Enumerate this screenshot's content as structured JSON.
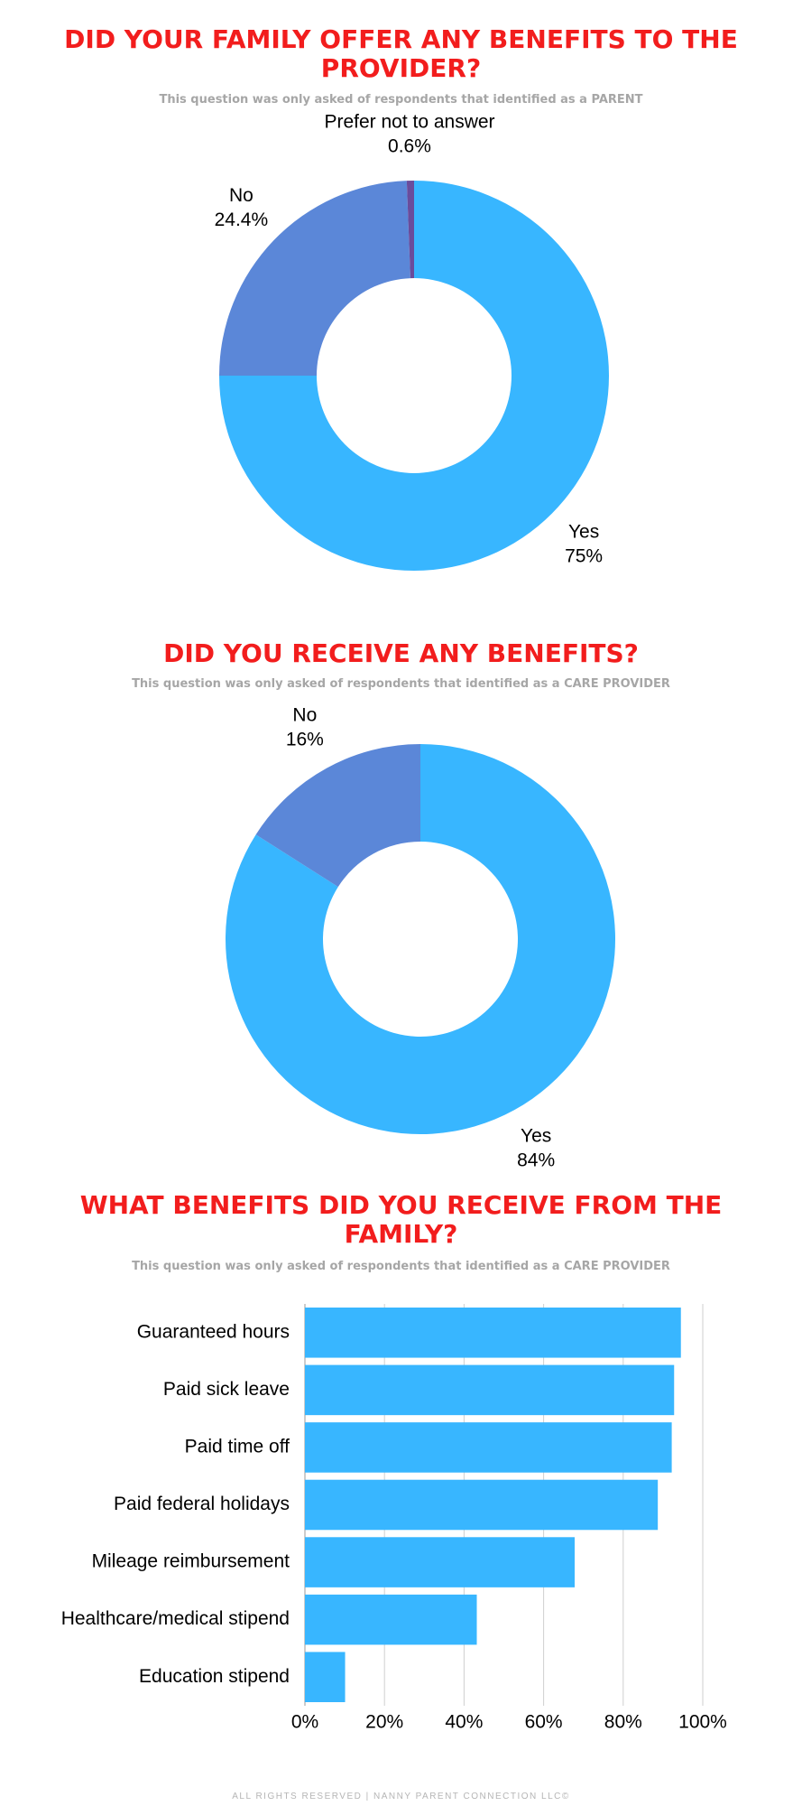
{
  "chart_data": [
    {
      "type": "donut",
      "title": "DID YOUR FAMILY OFFER ANY BENEFITS TO THE PROVIDER?",
      "subtitle": "This question was only asked of respondents that identified as a PARENT",
      "categories": [
        "Yes",
        "No",
        "Prefer not to answer"
      ],
      "values": [
        75,
        24.4,
        0.6
      ],
      "value_labels": [
        "75%",
        "24.4%",
        "0.6%"
      ],
      "colors": [
        "#38b6ff",
        "#5b87d8",
        "#6a4c9c"
      ]
    },
    {
      "type": "donut",
      "title": "DID YOU RECEIVE ANY BENEFITS?",
      "subtitle": "This question was only asked of respondents that identified as a CARE PROVIDER",
      "categories": [
        "Yes",
        "No"
      ],
      "values": [
        84,
        16
      ],
      "value_labels": [
        "84%",
        "16%"
      ],
      "colors": [
        "#38b6ff",
        "#5b87d8"
      ]
    },
    {
      "type": "hbar",
      "title": "WHAT BENEFITS DID YOU RECEIVE FROM THE FAMILY?",
      "subtitle": "This question was only asked of respondents that identified as a CARE PROVIDER",
      "categories": [
        "Guaranteed hours",
        "Paid sick leave",
        "Paid time off",
        "Paid federal holidays",
        "Mileage reimbursement",
        "Healthcare/medical stipend",
        "Education stipend"
      ],
      "values": [
        94.5,
        92.8,
        92.2,
        88.7,
        67.8,
        43.2,
        10.1
      ],
      "color": "#38b6ff",
      "xlim": [
        0,
        100
      ],
      "xticks": [
        {
          "value": 0,
          "label": "0%"
        },
        {
          "value": 20,
          "label": "20%"
        },
        {
          "value": 40,
          "label": "40%"
        },
        {
          "value": 60,
          "label": "60%"
        },
        {
          "value": 80,
          "label": "80%"
        },
        {
          "value": 100,
          "label": "100%"
        }
      ],
      "grid": true
    }
  ],
  "footer": "ALL RIGHTS RESERVED | NANNY PARENT CONNECTION LLC©"
}
